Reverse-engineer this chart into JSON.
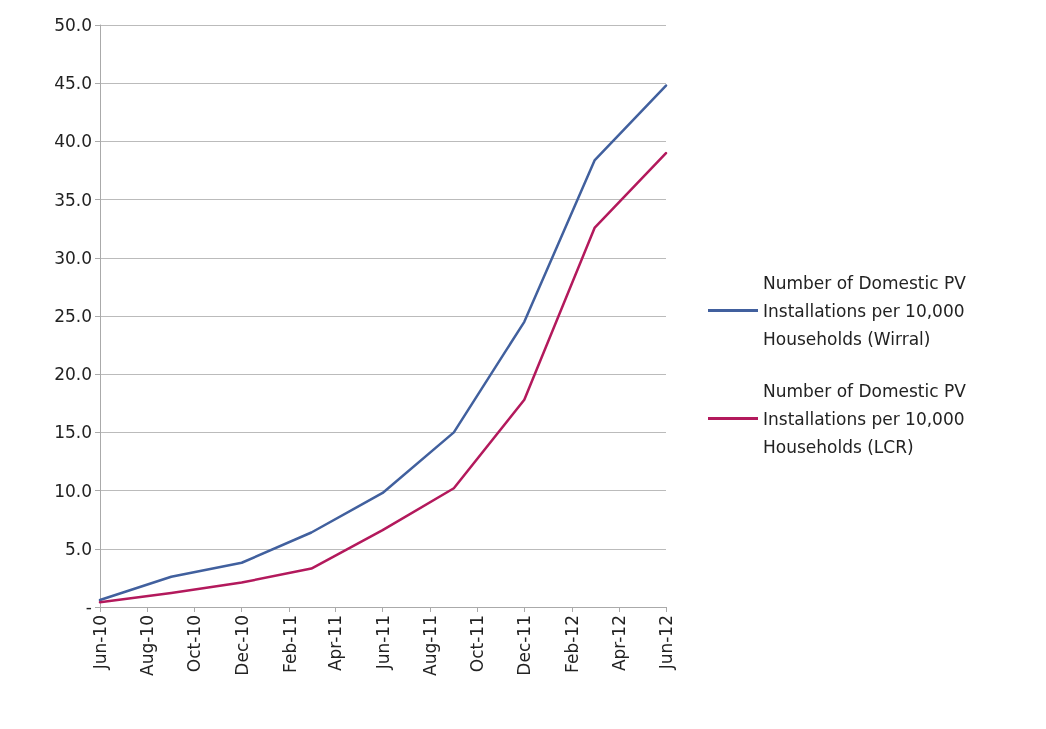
{
  "chart_data": {
    "type": "line",
    "x": [
      "2010-06",
      "2010-09",
      "2010-12",
      "2011-03",
      "2011-06",
      "2011-09",
      "2011-12",
      "2012-03",
      "2012-06"
    ],
    "series": [
      {
        "name": "Number of Domestic PV Installations per 10,000 Households (Wirral)",
        "color": "#41609e",
        "values": [
          0.6,
          2.6,
          3.8,
          6.4,
          9.8,
          15.0,
          24.5,
          38.4,
          44.8
        ]
      },
      {
        "name": "Number of Domestic PV Installations per 10,000 Households (LCR)",
        "color": "#b3195c",
        "values": [
          0.4,
          1.2,
          2.1,
          3.3,
          6.6,
          10.2,
          17.8,
          32.6,
          39.0
        ]
      }
    ],
    "xlim": [
      "2010-06",
      "2012-06"
    ],
    "xticks": [
      {
        "value": "2010-06",
        "label": "Jun-10"
      },
      {
        "value": "2010-08",
        "label": "Aug-10"
      },
      {
        "value": "2010-10",
        "label": "Oct-10"
      },
      {
        "value": "2010-12",
        "label": "Dec-10"
      },
      {
        "value": "2011-02",
        "label": "Feb-11"
      },
      {
        "value": "2011-04",
        "label": "Apr-11"
      },
      {
        "value": "2011-06",
        "label": "Jun-11"
      },
      {
        "value": "2011-08",
        "label": "Aug-11"
      },
      {
        "value": "2011-10",
        "label": "Oct-11"
      },
      {
        "value": "2011-12",
        "label": "Dec-11"
      },
      {
        "value": "2012-02",
        "label": "Feb-12"
      },
      {
        "value": "2012-04",
        "label": "Apr-12"
      },
      {
        "value": "2012-06",
        "label": "Jun-12"
      }
    ],
    "ylim": [
      0,
      50
    ],
    "yticks": [
      {
        "value": 0,
        "label": "-"
      },
      {
        "value": 5,
        "label": "5.0"
      },
      {
        "value": 10,
        "label": "10.0"
      },
      {
        "value": 15,
        "label": "15.0"
      },
      {
        "value": 20,
        "label": "20.0"
      },
      {
        "value": 25,
        "label": "25.0"
      },
      {
        "value": 30,
        "label": "30.0"
      },
      {
        "value": 35,
        "label": "35.0"
      },
      {
        "value": 40,
        "label": "40.0"
      },
      {
        "value": 45,
        "label": "45.0"
      },
      {
        "value": 50,
        "label": "50.0"
      }
    ],
    "grid": "y",
    "legend": "right",
    "marker": "none",
    "line_style": "solid"
  }
}
